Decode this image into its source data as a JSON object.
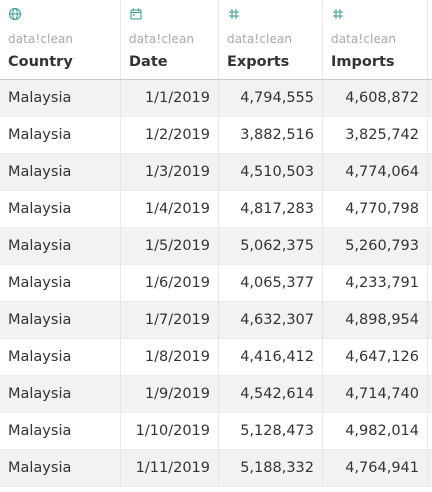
{
  "columns": [
    {
      "icon": "globe-icon",
      "source": "data!clean",
      "name": "Country"
    },
    {
      "icon": "calendar-icon",
      "source": "data!clean",
      "name": "Date"
    },
    {
      "icon": "hash-icon",
      "source": "data!clean",
      "name": "Exports"
    },
    {
      "icon": "hash-icon",
      "source": "data!clean",
      "name": "Imports"
    }
  ],
  "rows": [
    {
      "country": "Malaysia",
      "date": "1/1/2019",
      "exports": "4,794,555",
      "imports": "4,608,872"
    },
    {
      "country": "Malaysia",
      "date": "1/2/2019",
      "exports": "3,882,516",
      "imports": "3,825,742"
    },
    {
      "country": "Malaysia",
      "date": "1/3/2019",
      "exports": "4,510,503",
      "imports": "4,774,064"
    },
    {
      "country": "Malaysia",
      "date": "1/4/2019",
      "exports": "4,817,283",
      "imports": "4,770,798"
    },
    {
      "country": "Malaysia",
      "date": "1/5/2019",
      "exports": "5,062,375",
      "imports": "5,260,793"
    },
    {
      "country": "Malaysia",
      "date": "1/6/2019",
      "exports": "4,065,377",
      "imports": "4,233,791"
    },
    {
      "country": "Malaysia",
      "date": "1/7/2019",
      "exports": "4,632,307",
      "imports": "4,898,954"
    },
    {
      "country": "Malaysia",
      "date": "1/8/2019",
      "exports": "4,416,412",
      "imports": "4,647,126"
    },
    {
      "country": "Malaysia",
      "date": "1/9/2019",
      "exports": "4,542,614",
      "imports": "4,714,740"
    },
    {
      "country": "Malaysia",
      "date": "1/10/2019",
      "exports": "5,128,473",
      "imports": "4,982,014"
    },
    {
      "country": "Malaysia",
      "date": "1/11/2019",
      "exports": "5,188,332",
      "imports": "4,764,941"
    }
  ],
  "colors": {
    "icon": "#2e9a92",
    "source_text": "#a8a8a8",
    "header_text": "#333333",
    "band": "#f2f2f2"
  }
}
